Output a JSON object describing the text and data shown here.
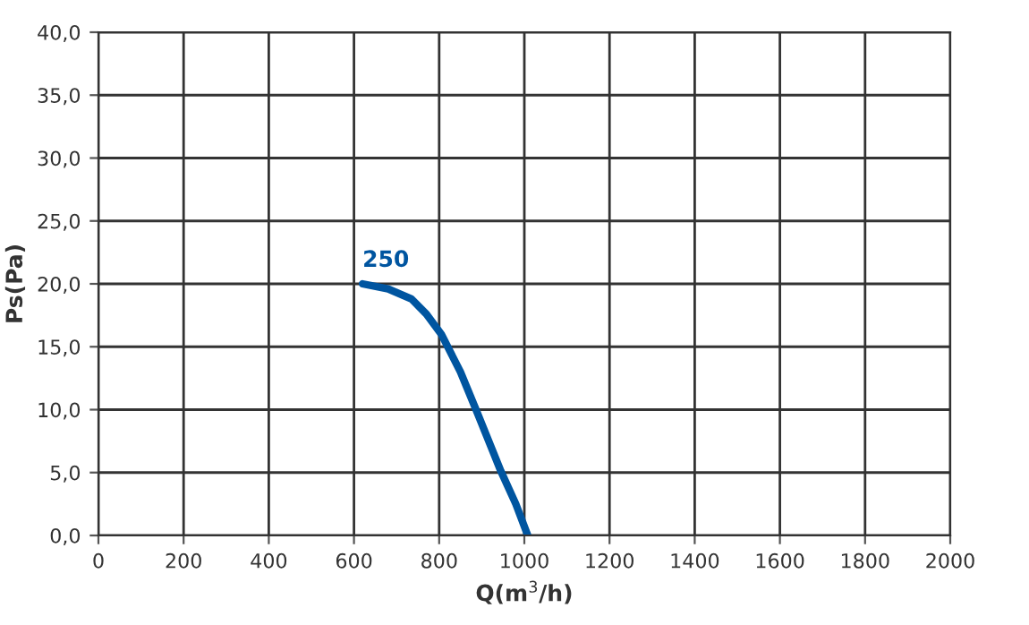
{
  "chart_data": {
    "type": "line",
    "xlabel": "Q(m$^{3}$/h)",
    "ylabel": "Ps(Pa)",
    "series": [
      {
        "name": "250",
        "color": "#0055a0",
        "x": [
          620,
          680,
          735,
          770,
          805,
          850,
          889,
          945,
          980,
          1008
        ],
        "values": [
          20.0,
          19.6,
          18.8,
          17.6,
          16.0,
          13.0,
          9.8,
          5.1,
          2.5,
          0.0
        ]
      }
    ],
    "xlim": [
      0,
      2000
    ],
    "xticks": [
      0,
      200,
      400,
      600,
      800,
      1000,
      1200,
      1400,
      1600,
      1800,
      2000
    ],
    "ylim": [
      0,
      40
    ],
    "yticks": [
      {
        "value": 0,
        "label": "0,0"
      },
      {
        "value": 5,
        "label": "5,0"
      },
      {
        "value": 10,
        "label": "10,0"
      },
      {
        "value": 15,
        "label": "15,0"
      },
      {
        "value": 20,
        "label": "20,0"
      },
      {
        "value": 25,
        "label": "25,0"
      },
      {
        "value": 30,
        "label": "30,0"
      },
      {
        "value": 35,
        "label": "35,0"
      },
      {
        "value": 40,
        "label": "40,0"
      }
    ],
    "grid": true,
    "legend": false
  }
}
